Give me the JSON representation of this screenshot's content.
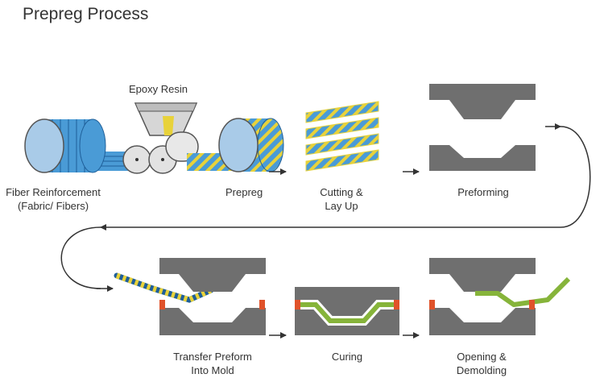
{
  "title": "Prepreg Process",
  "labels": {
    "epoxy_resin": "Epoxy Resin",
    "fiber_reinforcement": [
      "Fiber Reinforcement",
      "(Fabric/ Fibers)"
    ],
    "prepreg": "Prepreg",
    "cutting": [
      "Cutting &",
      "Lay Up"
    ],
    "preforming": "Preforming",
    "transfer": [
      "Transfer Preform",
      "Into Mold"
    ],
    "curing": "Curing",
    "opening": [
      "Opening &",
      "Demolding"
    ]
  },
  "colors": {
    "fiber_blue": "#4a9bd6",
    "fiber_yellow": "#e8d23a",
    "mold_gray": "#6f6f6f",
    "roller_gray": "#e2e2e2",
    "composite_green": "#86b43a",
    "seal_orange": "#e0522a",
    "arrow": "#333333"
  }
}
